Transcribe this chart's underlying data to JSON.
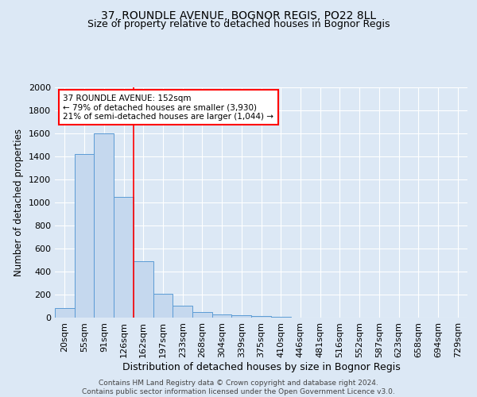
{
  "title": "37, ROUNDLE AVENUE, BOGNOR REGIS, PO22 8LL",
  "subtitle": "Size of property relative to detached houses in Bognor Regis",
  "xlabel": "Distribution of detached houses by size in Bognor Regis",
  "ylabel": "Number of detached properties",
  "categories": [
    "20sqm",
    "55sqm",
    "91sqm",
    "126sqm",
    "162sqm",
    "197sqm",
    "233sqm",
    "268sqm",
    "304sqm",
    "339sqm",
    "375sqm",
    "410sqm",
    "446sqm",
    "481sqm",
    "516sqm",
    "552sqm",
    "587sqm",
    "623sqm",
    "658sqm",
    "694sqm",
    "729sqm"
  ],
  "values": [
    80,
    1420,
    1600,
    1050,
    490,
    205,
    105,
    48,
    28,
    18,
    12,
    10,
    0,
    0,
    0,
    0,
    0,
    0,
    0,
    0,
    0
  ],
  "bar_color": "#c5d8ee",
  "bar_edge_color": "#5b9bd5",
  "annotation_text": "37 ROUNDLE AVENUE: 152sqm\n← 79% of detached houses are smaller (3,930)\n21% of semi-detached houses are larger (1,044) →",
  "annotation_box_color": "white",
  "annotation_box_edge_color": "red",
  "red_line_index": 3.5,
  "ylim": [
    0,
    2000
  ],
  "yticks": [
    0,
    200,
    400,
    600,
    800,
    1000,
    1200,
    1400,
    1600,
    1800,
    2000
  ],
  "bg_color": "#dce8f5",
  "plot_bg_color": "#dce8f5",
  "footer": "Contains HM Land Registry data © Crown copyright and database right 2024.\nContains public sector information licensed under the Open Government Licence v3.0.",
  "title_fontsize": 10,
  "subtitle_fontsize": 9,
  "xlabel_fontsize": 9,
  "ylabel_fontsize": 8.5,
  "tick_fontsize": 8,
  "footer_fontsize": 6.5
}
